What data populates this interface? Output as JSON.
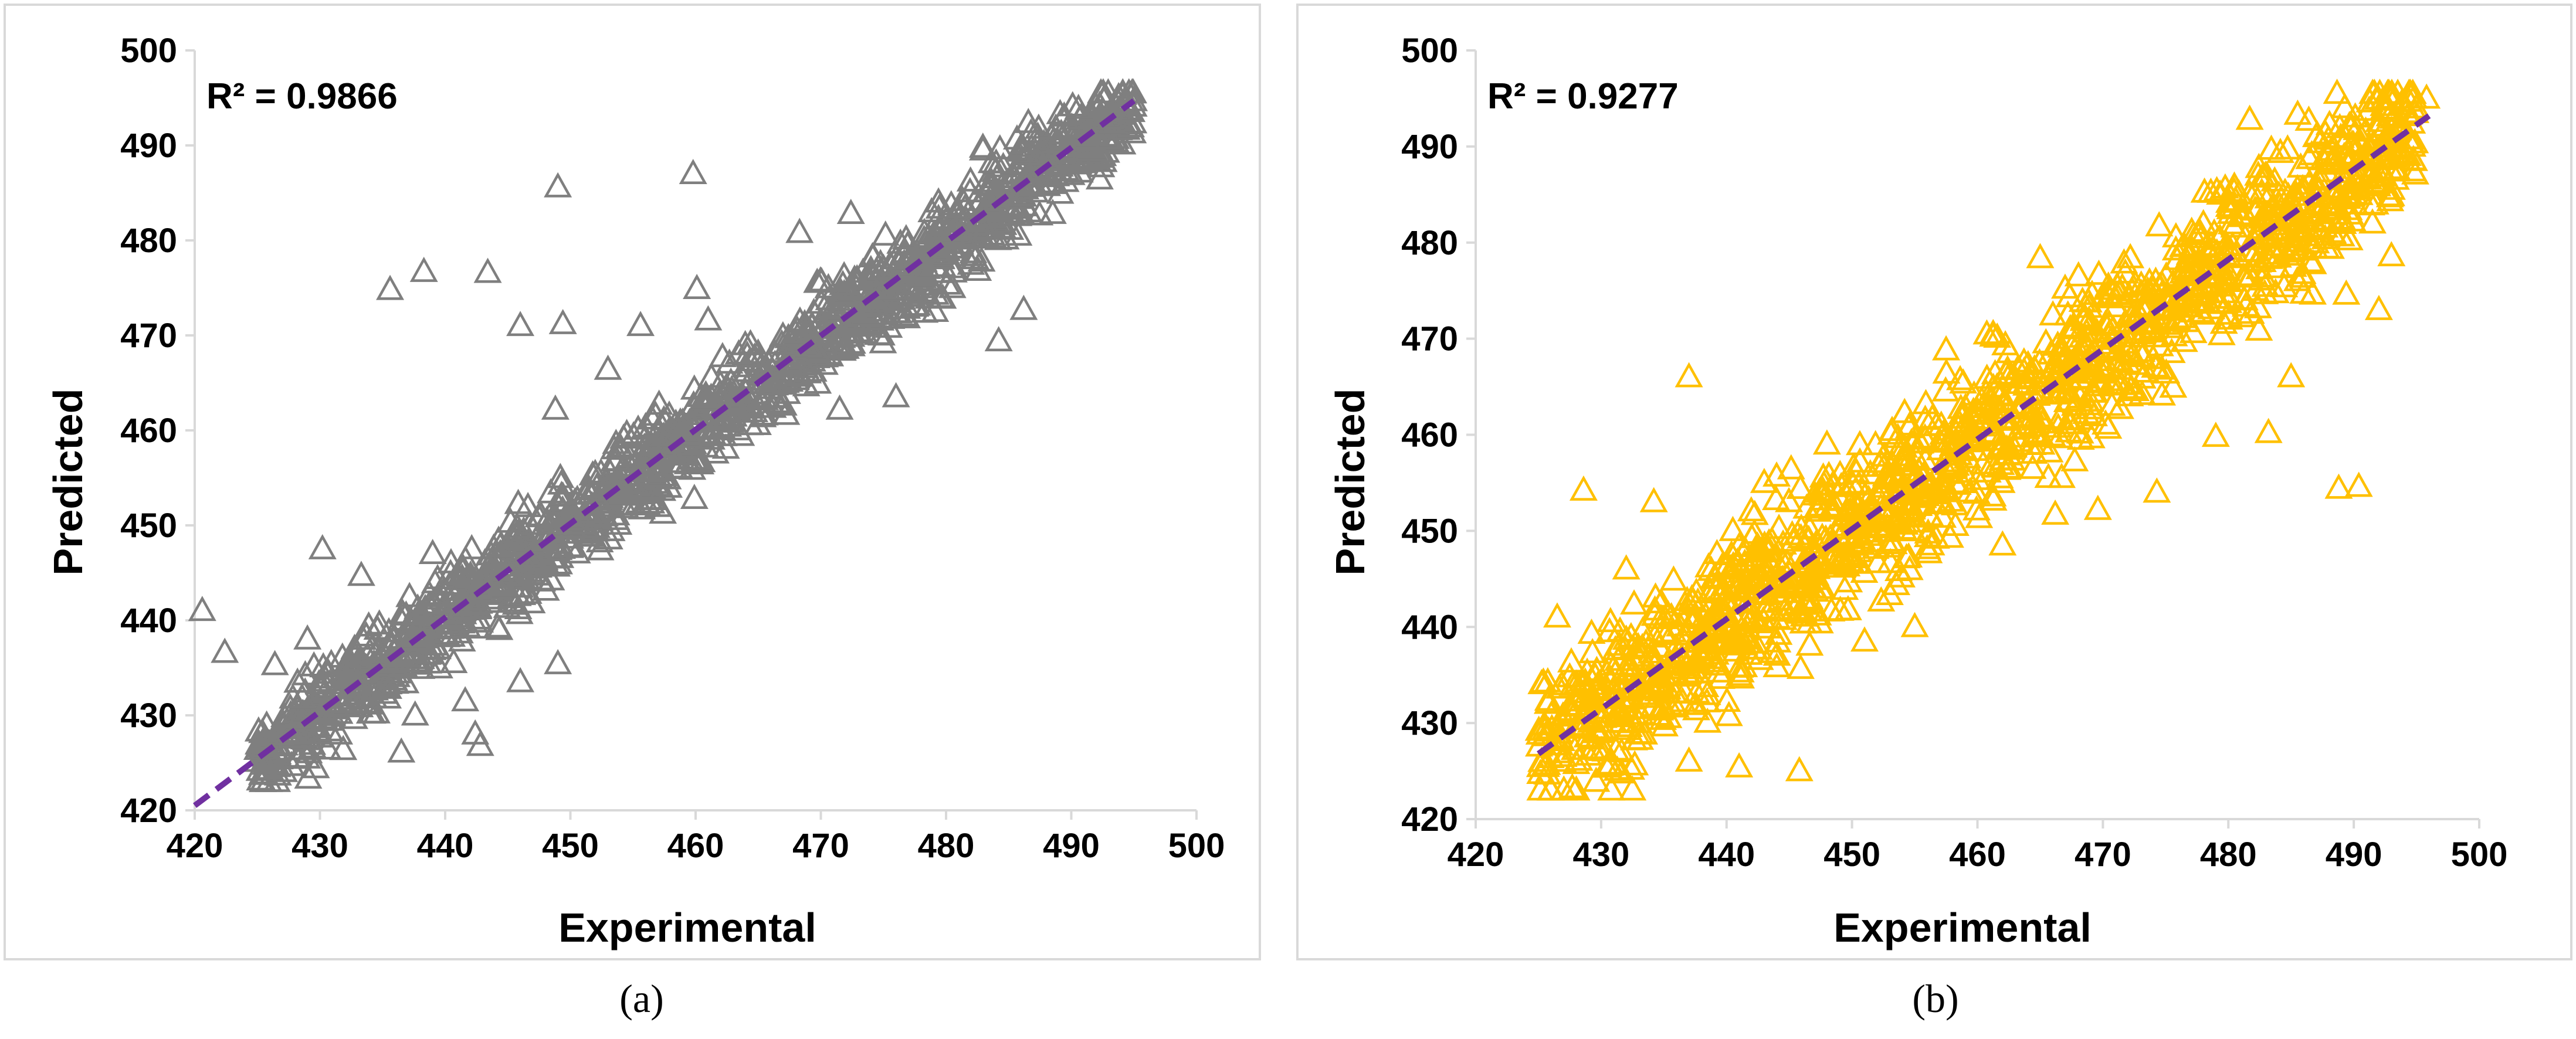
{
  "chart_data": [
    {
      "type": "scatter",
      "panel": "a",
      "caption": "(a)",
      "annotation": "R² = 0.9866",
      "r_squared": 0.9866,
      "xlabel": "Experimental",
      "ylabel": "Predicted",
      "xlim": [
        420,
        500
      ],
      "ylim": [
        420,
        500
      ],
      "xticks": [
        "420",
        "430",
        "440",
        "450",
        "460",
        "470",
        "480",
        "490",
        "500"
      ],
      "yticks": [
        "420",
        "430",
        "440",
        "450",
        "460",
        "470",
        "480",
        "490",
        "500"
      ],
      "marker_color": "#7f7f7f",
      "fit_line_color": "#7030a0",
      "fit_line": {
        "x": [
          420,
          495
        ],
        "y": [
          420.5,
          494.7
        ]
      },
      "bulk_cloud": {
        "x_range": [
          425,
          495
        ],
        "spread": 4.5
      },
      "outliers": [
        {
          "x": 420.6,
          "y": 441.0
        },
        {
          "x": 422.4,
          "y": 436.6
        },
        {
          "x": 430.2,
          "y": 447.5
        },
        {
          "x": 435.6,
          "y": 474.8
        },
        {
          "x": 438.3,
          "y": 476.7
        },
        {
          "x": 436.5,
          "y": 426.1
        },
        {
          "x": 443.4,
          "y": 476.6
        },
        {
          "x": 446.0,
          "y": 471.0
        },
        {
          "x": 449.0,
          "y": 485.6
        },
        {
          "x": 449.4,
          "y": 471.2
        },
        {
          "x": 459.8,
          "y": 487.0
        },
        {
          "x": 455.6,
          "y": 471.0
        },
        {
          "x": 448.8,
          "y": 462.2
        },
        {
          "x": 449.0,
          "y": 435.4
        },
        {
          "x": 442.8,
          "y": 426.8
        },
        {
          "x": 442.4,
          "y": 428.0
        },
        {
          "x": 459.9,
          "y": 452.8
        },
        {
          "x": 460.1,
          "y": 474.9
        },
        {
          "x": 461.0,
          "y": 471.6
        },
        {
          "x": 453.0,
          "y": 466.4
        },
        {
          "x": 484.2,
          "y": 469.4
        },
        {
          "x": 486.2,
          "y": 472.7
        },
        {
          "x": 471.5,
          "y": 462.2
        },
        {
          "x": 468.3,
          "y": 480.8
        },
        {
          "x": 472.4,
          "y": 482.8
        },
        {
          "x": 484.3,
          "y": 489.6
        },
        {
          "x": 441.6,
          "y": 431.5
        },
        {
          "x": 433.3,
          "y": 444.7
        },
        {
          "x": 437.6,
          "y": 430.0
        },
        {
          "x": 426.4,
          "y": 435.3
        },
        {
          "x": 439.0,
          "y": 447.0
        },
        {
          "x": 449.2,
          "y": 455.0
        },
        {
          "x": 476.0,
          "y": 463.5
        },
        {
          "x": 480.5,
          "y": 475.0
        },
        {
          "x": 446.0,
          "y": 433.5
        },
        {
          "x": 429.0,
          "y": 438.0
        }
      ]
    },
    {
      "type": "scatter",
      "panel": "b",
      "caption": "(b)",
      "annotation": "R² = 0.9277",
      "r_squared": 0.9277,
      "xlabel": "Experimental",
      "ylabel": "Predicted",
      "xlim": [
        420,
        500
      ],
      "ylim": [
        420,
        500
      ],
      "xticks": [
        "420",
        "430",
        "440",
        "450",
        "460",
        "470",
        "480",
        "490",
        "500"
      ],
      "yticks": [
        "420",
        "430",
        "440",
        "450",
        "460",
        "470",
        "480",
        "490",
        "500"
      ],
      "marker_color": "#ffc000",
      "fit_line_color": "#7030a0",
      "fit_line": {
        "x": [
          425,
          496
        ],
        "y": [
          426.8,
          493.2
        ]
      },
      "bulk_cloud": {
        "x_range": [
          425,
          495
        ],
        "spread": 7.5
      },
      "outliers": [
        {
          "x": 437.0,
          "y": 466.0
        },
        {
          "x": 428.6,
          "y": 454.2
        },
        {
          "x": 429.6,
          "y": 423.9
        },
        {
          "x": 445.8,
          "y": 425.0
        },
        {
          "x": 441.0,
          "y": 425.4
        },
        {
          "x": 434.2,
          "y": 453.0
        },
        {
          "x": 443.0,
          "y": 455.0
        },
        {
          "x": 488.8,
          "y": 454.4
        },
        {
          "x": 490.4,
          "y": 454.6
        },
        {
          "x": 492.0,
          "y": 473.0
        },
        {
          "x": 493.0,
          "y": 478.6
        },
        {
          "x": 489.4,
          "y": 474.6
        },
        {
          "x": 481.7,
          "y": 492.8
        },
        {
          "x": 493.0,
          "y": 495.0
        },
        {
          "x": 494.8,
          "y": 495.0
        },
        {
          "x": 495.8,
          "y": 495.0
        },
        {
          "x": 479.0,
          "y": 459.8
        },
        {
          "x": 483.2,
          "y": 460.2
        },
        {
          "x": 474.3,
          "y": 454.0
        },
        {
          "x": 466.2,
          "y": 451.7
        },
        {
          "x": 469.6,
          "y": 452.2
        },
        {
          "x": 465.0,
          "y": 478.4
        },
        {
          "x": 457.5,
          "y": 468.8
        },
        {
          "x": 426.5,
          "y": 441.0
        },
        {
          "x": 432.0,
          "y": 446.0
        },
        {
          "x": 427.0,
          "y": 426.5
        },
        {
          "x": 440.5,
          "y": 450.0
        },
        {
          "x": 455.0,
          "y": 440.0
        },
        {
          "x": 451.0,
          "y": 438.5
        },
        {
          "x": 462.0,
          "y": 448.5
        },
        {
          "x": 485.0,
          "y": 466.0
        },
        {
          "x": 487.0,
          "y": 491.0
        },
        {
          "x": 437.0,
          "y": 426.0
        },
        {
          "x": 448.0,
          "y": 459.0
        }
      ]
    }
  ]
}
